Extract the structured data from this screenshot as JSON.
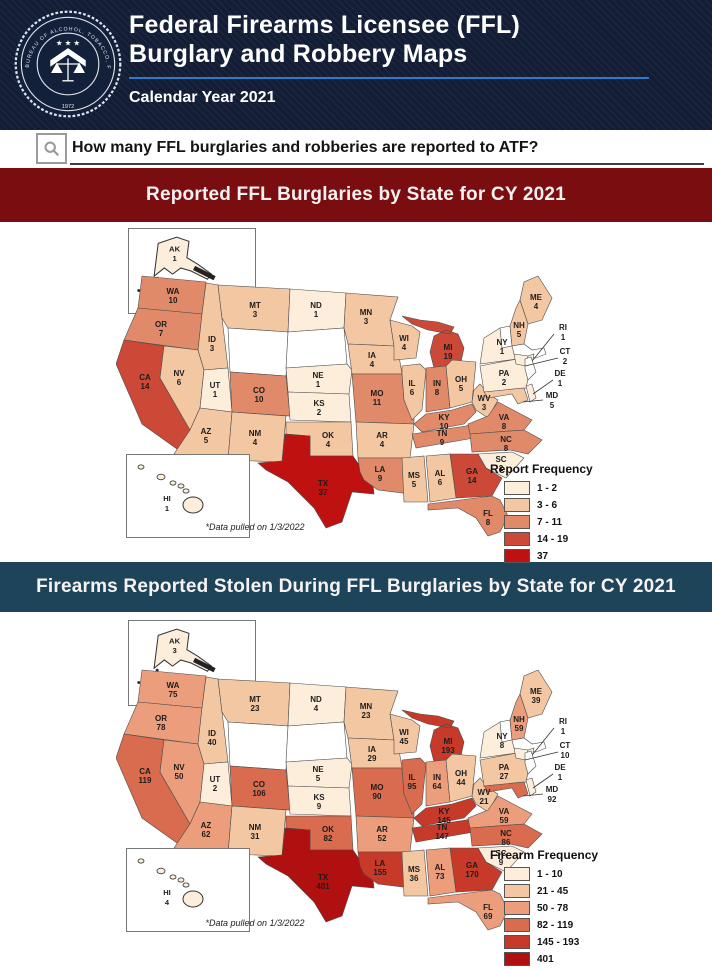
{
  "header": {
    "title_line1": "Federal Firearms Licensee (FFL)",
    "title_line2": "Burglary and Robbery Maps",
    "subtitle": "Calendar Year 2021",
    "bg_color": "#131e36",
    "rule_color": "#2f79c7",
    "seal_text": "BUREAU OF ALCOHOL, TOBACCO, FIREARMS AND EXPLOSIVES",
    "seal_year": "1972",
    "seal_stars": "★ ★ ★"
  },
  "question": {
    "text": "How many FFL burglaries and robberies are reported to ATF?"
  },
  "maps": [
    {
      "banner": "Reported FFL Burglaries by State for CY 2021",
      "banner_color": "#7a0d10",
      "note": "*Data pulled on 1/3/2022",
      "legend": {
        "title": "Report Frequency",
        "bins": [
          "1 - 2",
          "3 - 6",
          "7 - 11",
          "14 - 19",
          "37"
        ],
        "colors": [
          "#fdeedc",
          "#f4c7a3",
          "#e08a6a",
          "#cb4936",
          "#bf1210"
        ]
      },
      "no_data_color": "#ffffff",
      "insets": {
        "ak": {
          "abbr": "AK",
          "v": 1,
          "b": 0
        },
        "hi": {
          "abbr": "HI",
          "v": 1,
          "b": 0
        }
      },
      "states": {
        "WA": {
          "v": 10,
          "b": 2
        },
        "OR": {
          "v": 7,
          "b": 2
        },
        "CA": {
          "v": 14,
          "b": 3
        },
        "NV": {
          "v": 6,
          "b": 1
        },
        "ID": {
          "v": 3,
          "b": 1
        },
        "MT": {
          "v": 3,
          "b": 1
        },
        "UT": {
          "v": 1,
          "b": 0
        },
        "AZ": {
          "v": 5,
          "b": 1
        },
        "NM": {
          "v": 4,
          "b": 1
        },
        "CO": {
          "v": 10,
          "b": 2
        },
        "ND": {
          "v": 1,
          "b": 0
        },
        "NE": {
          "v": 1,
          "b": 0
        },
        "KS": {
          "v": 2,
          "b": 0
        },
        "OK": {
          "v": 4,
          "b": 1
        },
        "TX": {
          "v": 37,
          "b": 4
        },
        "MN": {
          "v": 3,
          "b": 1
        },
        "IA": {
          "v": 4,
          "b": 1
        },
        "MO": {
          "v": 11,
          "b": 2
        },
        "AR": {
          "v": 4,
          "b": 1
        },
        "LA": {
          "v": 9,
          "b": 2
        },
        "WI": {
          "v": 4,
          "b": 1
        },
        "IL": {
          "v": 6,
          "b": 1
        },
        "MI": {
          "v": 19,
          "b": 3
        },
        "IN": {
          "v": 8,
          "b": 2
        },
        "OH": {
          "v": 5,
          "b": 1
        },
        "KY": {
          "v": 10,
          "b": 2
        },
        "TN": {
          "v": 9,
          "b": 2
        },
        "MS": {
          "v": 5,
          "b": 1
        },
        "AL": {
          "v": 6,
          "b": 1
        },
        "GA": {
          "v": 14,
          "b": 3
        },
        "FL": {
          "v": 8,
          "b": 2
        },
        "SC": {
          "v": 2,
          "b": 0
        },
        "NC": {
          "v": 8,
          "b": 2
        },
        "VA": {
          "v": 8,
          "b": 2
        },
        "WV": {
          "v": 3,
          "b": 1
        },
        "PA": {
          "v": 2,
          "b": 0
        },
        "NY": {
          "v": 1,
          "b": 0
        },
        "ME": {
          "v": 4,
          "b": 1
        },
        "NH": {
          "v": 5,
          "b": 1
        },
        "CT": {
          "v": 2,
          "b": 0
        },
        "RI": {
          "v": 1,
          "b": 0
        },
        "DE": {
          "v": 1,
          "b": 0
        },
        "MD": {
          "v": 5,
          "b": 1
        }
      }
    },
    {
      "banner": "Firearms Reported Stolen During FFL Burglaries by State for CY 2021",
      "banner_color": "#1e4459",
      "note": "*Data pulled on 1/3/2022",
      "legend": {
        "title": "Firearm Frequency",
        "bins": [
          "1 - 10",
          "21 - 45",
          "50 - 78",
          "82 - 119",
          "145 - 193",
          "401"
        ],
        "colors": [
          "#fdeedc",
          "#f4c7a3",
          "#ec9e7c",
          "#d96b4e",
          "#c73a2a",
          "#b11010"
        ]
      },
      "no_data_color": "#ffffff",
      "insets": {
        "ak": {
          "abbr": "AK",
          "v": 3,
          "b": 0
        },
        "hi": {
          "abbr": "HI",
          "v": 4,
          "b": 0
        }
      },
      "states": {
        "WA": {
          "v": 75,
          "b": 2
        },
        "OR": {
          "v": 78,
          "b": 2
        },
        "CA": {
          "v": 119,
          "b": 3
        },
        "NV": {
          "v": 50,
          "b": 2
        },
        "ID": {
          "v": 40,
          "b": 1
        },
        "MT": {
          "v": 23,
          "b": 1
        },
        "UT": {
          "v": 2,
          "b": 0
        },
        "AZ": {
          "v": 62,
          "b": 2
        },
        "NM": {
          "v": 31,
          "b": 1
        },
        "CO": {
          "v": 106,
          "b": 3
        },
        "ND": {
          "v": 4,
          "b": 0
        },
        "NE": {
          "v": 5,
          "b": 0
        },
        "KS": {
          "v": 9,
          "b": 0
        },
        "OK": {
          "v": 82,
          "b": 3
        },
        "TX": {
          "v": 401,
          "b": 5
        },
        "MN": {
          "v": 23,
          "b": 1
        },
        "IA": {
          "v": 29,
          "b": 1
        },
        "MO": {
          "v": 90,
          "b": 3
        },
        "AR": {
          "v": 52,
          "b": 2
        },
        "LA": {
          "v": 155,
          "b": 4
        },
        "WI": {
          "v": 45,
          "b": 1
        },
        "IL": {
          "v": 95,
          "b": 3
        },
        "MI": {
          "v": 193,
          "b": 4
        },
        "IN": {
          "v": 64,
          "b": 2
        },
        "OH": {
          "v": 44,
          "b": 1
        },
        "KY": {
          "v": 145,
          "b": 4
        },
        "TN": {
          "v": 147,
          "b": 4
        },
        "MS": {
          "v": 36,
          "b": 1
        },
        "AL": {
          "v": 73,
          "b": 2
        },
        "GA": {
          "v": 170,
          "b": 4
        },
        "FL": {
          "v": 69,
          "b": 2
        },
        "SC": {
          "v": 9,
          "b": 0
        },
        "NC": {
          "v": 86,
          "b": 3
        },
        "VA": {
          "v": 59,
          "b": 2
        },
        "WV": {
          "v": 21,
          "b": 1
        },
        "PA": {
          "v": 27,
          "b": 1
        },
        "NY": {
          "v": 8,
          "b": 0
        },
        "ME": {
          "v": 39,
          "b": 1
        },
        "NH": {
          "v": 59,
          "b": 2
        },
        "CT": {
          "v": 10,
          "b": 0
        },
        "RI": {
          "v": 1,
          "b": 0
        },
        "DE": {
          "v": 1,
          "b": 0
        },
        "MD": {
          "v": 92,
          "b": 3
        }
      }
    }
  ]
}
